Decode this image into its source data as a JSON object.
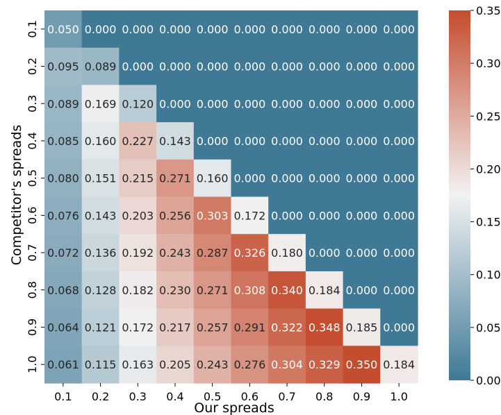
{
  "chart_data": {
    "type": "heatmap",
    "xlabel": "Our spreads",
    "ylabel": "Competitor's spreads",
    "x_categories": [
      "0.1",
      "0.2",
      "0.3",
      "0.4",
      "0.5",
      "0.6",
      "0.7",
      "0.8",
      "0.9",
      "1.0"
    ],
    "y_categories": [
      "0.1",
      "0.2",
      "0.3",
      "0.4",
      "0.5",
      "0.6",
      "0.7",
      "0.8",
      "0.9",
      "1.0"
    ],
    "values": [
      [
        0.05,
        0.0,
        0.0,
        0.0,
        0.0,
        0.0,
        0.0,
        0.0,
        0.0,
        0.0
      ],
      [
        0.095,
        0.089,
        0.0,
        0.0,
        0.0,
        0.0,
        0.0,
        0.0,
        0.0,
        0.0
      ],
      [
        0.089,
        0.169,
        0.12,
        0.0,
        0.0,
        0.0,
        0.0,
        0.0,
        0.0,
        0.0
      ],
      [
        0.085,
        0.16,
        0.227,
        0.143,
        0.0,
        0.0,
        0.0,
        0.0,
        0.0,
        0.0
      ],
      [
        0.08,
        0.151,
        0.215,
        0.271,
        0.16,
        0.0,
        0.0,
        0.0,
        0.0,
        0.0
      ],
      [
        0.076,
        0.143,
        0.203,
        0.256,
        0.303,
        0.172,
        0.0,
        0.0,
        0.0,
        0.0
      ],
      [
        0.072,
        0.136,
        0.192,
        0.243,
        0.287,
        0.326,
        0.18,
        0.0,
        0.0,
        0.0
      ],
      [
        0.068,
        0.128,
        0.182,
        0.23,
        0.271,
        0.308,
        0.34,
        0.184,
        0.0,
        0.0
      ],
      [
        0.064,
        0.121,
        0.172,
        0.217,
        0.257,
        0.291,
        0.322,
        0.348,
        0.185,
        0.0
      ],
      [
        0.061,
        0.115,
        0.163,
        0.205,
        0.243,
        0.276,
        0.304,
        0.329,
        0.35,
        0.184
      ]
    ],
    "value_format_decimals": 3,
    "colorbar": {
      "range": [
        0,
        0.35
      ],
      "ticks": [
        "0.00",
        "0.05",
        "0.10",
        "0.15",
        "0.20",
        "0.25",
        "0.30",
        "0.35"
      ],
      "low_color": "#3f7996",
      "mid_color": "#f2f2f2",
      "high_color": "#c44c2f"
    }
  }
}
